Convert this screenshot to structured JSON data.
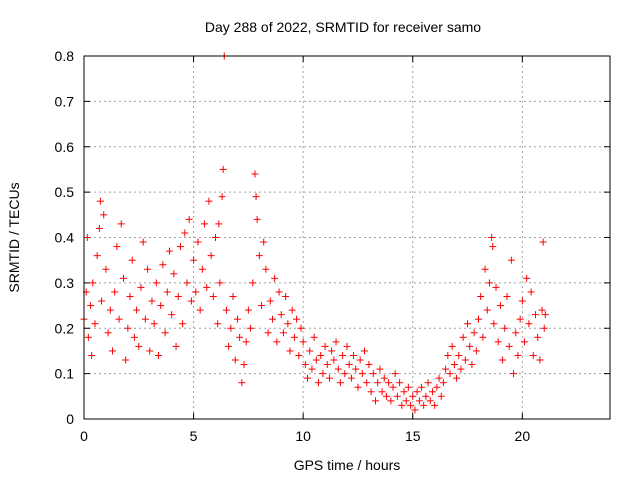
{
  "chart_data": {
    "type": "scatter",
    "title": "Day 288 of 2022, SRMTID for receiver samo",
    "xlabel": "GPS time / hours",
    "ylabel": "SRMTID / TECUs",
    "xlim": [
      0,
      24
    ],
    "ylim": [
      0,
      0.8
    ],
    "xticks": [
      0,
      5,
      10,
      15,
      20
    ],
    "xtick_labels": [
      "0",
      "5",
      "10",
      "15",
      "20"
    ],
    "yticks": [
      0,
      0.1,
      0.2,
      0.3,
      0.4,
      0.5,
      0.6,
      0.7,
      0.8
    ],
    "ytick_labels": [
      "0",
      "0.1",
      "0.2",
      "0.3",
      "0.4",
      "0.5",
      "0.6",
      "0.7",
      "0.8"
    ],
    "grid": true,
    "series": [
      {
        "name": "SRMTID",
        "color": "#ff0000",
        "marker": "plus",
        "points": [
          [
            0.0,
            0.22
          ],
          [
            0.1,
            0.28
          ],
          [
            0.15,
            0.4
          ],
          [
            0.2,
            0.18
          ],
          [
            0.3,
            0.25
          ],
          [
            0.35,
            0.14
          ],
          [
            0.4,
            0.3
          ],
          [
            0.5,
            0.21
          ],
          [
            0.6,
            0.36
          ],
          [
            0.7,
            0.42
          ],
          [
            0.75,
            0.48
          ],
          [
            0.8,
            0.26
          ],
          [
            0.9,
            0.45
          ],
          [
            1.0,
            0.33
          ],
          [
            1.1,
            0.19
          ],
          [
            1.2,
            0.24
          ],
          [
            1.3,
            0.15
          ],
          [
            1.4,
            0.28
          ],
          [
            1.5,
            0.38
          ],
          [
            1.6,
            0.22
          ],
          [
            1.7,
            0.43
          ],
          [
            1.8,
            0.31
          ],
          [
            1.9,
            0.13
          ],
          [
            2.0,
            0.2
          ],
          [
            2.1,
            0.27
          ],
          [
            2.2,
            0.35
          ],
          [
            2.3,
            0.18
          ],
          [
            2.4,
            0.24
          ],
          [
            2.5,
            0.16
          ],
          [
            2.6,
            0.29
          ],
          [
            2.7,
            0.39
          ],
          [
            2.8,
            0.22
          ],
          [
            2.9,
            0.33
          ],
          [
            3.0,
            0.15
          ],
          [
            3.1,
            0.26
          ],
          [
            3.2,
            0.21
          ],
          [
            3.3,
            0.3
          ],
          [
            3.4,
            0.14
          ],
          [
            3.5,
            0.25
          ],
          [
            3.6,
            0.34
          ],
          [
            3.7,
            0.19
          ],
          [
            3.8,
            0.28
          ],
          [
            3.9,
            0.37
          ],
          [
            4.0,
            0.23
          ],
          [
            4.1,
            0.32
          ],
          [
            4.2,
            0.16
          ],
          [
            4.3,
            0.27
          ],
          [
            4.4,
            0.38
          ],
          [
            4.5,
            0.21
          ],
          [
            4.6,
            0.41
          ],
          [
            4.7,
            0.3
          ],
          [
            4.8,
            0.44
          ],
          [
            4.9,
            0.26
          ],
          [
            5.0,
            0.35
          ],
          [
            5.1,
            0.28
          ],
          [
            5.2,
            0.39
          ],
          [
            5.3,
            0.24
          ],
          [
            5.4,
            0.33
          ],
          [
            5.5,
            0.43
          ],
          [
            5.6,
            0.29
          ],
          [
            5.7,
            0.48
          ],
          [
            5.8,
            0.36
          ],
          [
            5.9,
            0.27
          ],
          [
            6.0,
            0.4
          ],
          [
            6.1,
            0.21
          ],
          [
            6.15,
            0.43
          ],
          [
            6.2,
            0.3
          ],
          [
            6.3,
            0.49
          ],
          [
            6.35,
            0.55
          ],
          [
            6.4,
            0.8
          ],
          [
            6.5,
            0.24
          ],
          [
            6.6,
            0.16
          ],
          [
            6.7,
            0.2
          ],
          [
            6.8,
            0.27
          ],
          [
            6.9,
            0.13
          ],
          [
            7.0,
            0.22
          ],
          [
            7.1,
            0.18
          ],
          [
            7.2,
            0.08
          ],
          [
            7.3,
            0.12
          ],
          [
            7.4,
            0.17
          ],
          [
            7.5,
            0.24
          ],
          [
            7.6,
            0.2
          ],
          [
            7.7,
            0.3
          ],
          [
            7.8,
            0.54
          ],
          [
            7.85,
            0.49
          ],
          [
            7.9,
            0.44
          ],
          [
            8.0,
            0.36
          ],
          [
            8.1,
            0.25
          ],
          [
            8.2,
            0.39
          ],
          [
            8.3,
            0.33
          ],
          [
            8.4,
            0.19
          ],
          [
            8.5,
            0.26
          ],
          [
            8.6,
            0.22
          ],
          [
            8.7,
            0.31
          ],
          [
            8.8,
            0.17
          ],
          [
            8.9,
            0.28
          ],
          [
            9.0,
            0.23
          ],
          [
            9.1,
            0.19
          ],
          [
            9.2,
            0.27
          ],
          [
            9.3,
            0.21
          ],
          [
            9.4,
            0.15
          ],
          [
            9.5,
            0.24
          ],
          [
            9.6,
            0.18
          ],
          [
            9.7,
            0.22
          ],
          [
            9.8,
            0.14
          ],
          [
            9.9,
            0.2
          ],
          [
            10.0,
            0.17
          ],
          [
            10.1,
            0.12
          ],
          [
            10.2,
            0.09
          ],
          [
            10.3,
            0.15
          ],
          [
            10.4,
            0.11
          ],
          [
            10.5,
            0.18
          ],
          [
            10.6,
            0.13
          ],
          [
            10.7,
            0.08
          ],
          [
            10.8,
            0.14
          ],
          [
            10.9,
            0.1
          ],
          [
            11.0,
            0.16
          ],
          [
            11.1,
            0.12
          ],
          [
            11.2,
            0.09
          ],
          [
            11.3,
            0.15
          ],
          [
            11.4,
            0.13
          ],
          [
            11.5,
            0.17
          ],
          [
            11.6,
            0.11
          ],
          [
            11.7,
            0.08
          ],
          [
            11.8,
            0.14
          ],
          [
            11.9,
            0.1
          ],
          [
            12.0,
            0.16
          ],
          [
            12.1,
            0.12
          ],
          [
            12.2,
            0.09
          ],
          [
            12.3,
            0.14
          ],
          [
            12.4,
            0.11
          ],
          [
            12.5,
            0.07
          ],
          [
            12.6,
            0.13
          ],
          [
            12.7,
            0.1
          ],
          [
            12.8,
            0.15
          ],
          [
            12.9,
            0.08
          ],
          [
            13.0,
            0.12
          ],
          [
            13.1,
            0.06
          ],
          [
            13.2,
            0.1
          ],
          [
            13.3,
            0.04
          ],
          [
            13.4,
            0.08
          ],
          [
            13.5,
            0.11
          ],
          [
            13.6,
            0.06
          ],
          [
            13.7,
            0.09
          ],
          [
            13.8,
            0.05
          ],
          [
            13.9,
            0.08
          ],
          [
            14.0,
            0.04
          ],
          [
            14.1,
            0.07
          ],
          [
            14.2,
            0.1
          ],
          [
            14.3,
            0.05
          ],
          [
            14.4,
            0.08
          ],
          [
            14.5,
            0.03
          ],
          [
            14.6,
            0.06
          ],
          [
            14.7,
            0.04
          ],
          [
            14.8,
            0.07
          ],
          [
            14.9,
            0.03
          ],
          [
            15.0,
            0.05
          ],
          [
            15.1,
            0.02
          ],
          [
            15.2,
            0.06
          ],
          [
            15.3,
            0.04
          ],
          [
            15.4,
            0.07
          ],
          [
            15.5,
            0.03
          ],
          [
            15.6,
            0.05
          ],
          [
            15.7,
            0.08
          ],
          [
            15.8,
            0.04
          ],
          [
            15.9,
            0.06
          ],
          [
            16.0,
            0.03
          ],
          [
            16.1,
            0.07
          ],
          [
            16.2,
            0.09
          ],
          [
            16.3,
            0.05
          ],
          [
            16.4,
            0.08
          ],
          [
            16.5,
            0.11
          ],
          [
            16.6,
            0.14
          ],
          [
            16.7,
            0.1
          ],
          [
            16.8,
            0.16
          ],
          [
            16.9,
            0.12
          ],
          [
            17.0,
            0.09
          ],
          [
            17.1,
            0.14
          ],
          [
            17.2,
            0.11
          ],
          [
            17.3,
            0.18
          ],
          [
            17.4,
            0.13
          ],
          [
            17.5,
            0.21
          ],
          [
            17.6,
            0.16
          ],
          [
            17.7,
            0.12
          ],
          [
            17.8,
            0.19
          ],
          [
            17.9,
            0.15
          ],
          [
            18.0,
            0.22
          ],
          [
            18.1,
            0.27
          ],
          [
            18.2,
            0.18
          ],
          [
            18.3,
            0.33
          ],
          [
            18.4,
            0.24
          ],
          [
            18.5,
            0.3
          ],
          [
            18.6,
            0.4
          ],
          [
            18.65,
            0.38
          ],
          [
            18.7,
            0.21
          ],
          [
            18.8,
            0.29
          ],
          [
            18.9,
            0.17
          ],
          [
            19.0,
            0.25
          ],
          [
            19.1,
            0.13
          ],
          [
            19.2,
            0.2
          ],
          [
            19.3,
            0.27
          ],
          [
            19.4,
            0.16
          ],
          [
            19.5,
            0.35
          ],
          [
            19.6,
            0.1
          ],
          [
            19.7,
            0.19
          ],
          [
            19.8,
            0.14
          ],
          [
            19.9,
            0.22
          ],
          [
            20.0,
            0.26
          ],
          [
            20.1,
            0.17
          ],
          [
            20.2,
            0.31
          ],
          [
            20.3,
            0.21
          ],
          [
            20.4,
            0.28
          ],
          [
            20.5,
            0.14
          ],
          [
            20.6,
            0.23
          ],
          [
            20.7,
            0.18
          ],
          [
            20.8,
            0.13
          ],
          [
            20.9,
            0.24
          ],
          [
            20.95,
            0.39
          ],
          [
            21.0,
            0.2
          ],
          [
            21.05,
            0.23
          ]
        ]
      }
    ]
  }
}
